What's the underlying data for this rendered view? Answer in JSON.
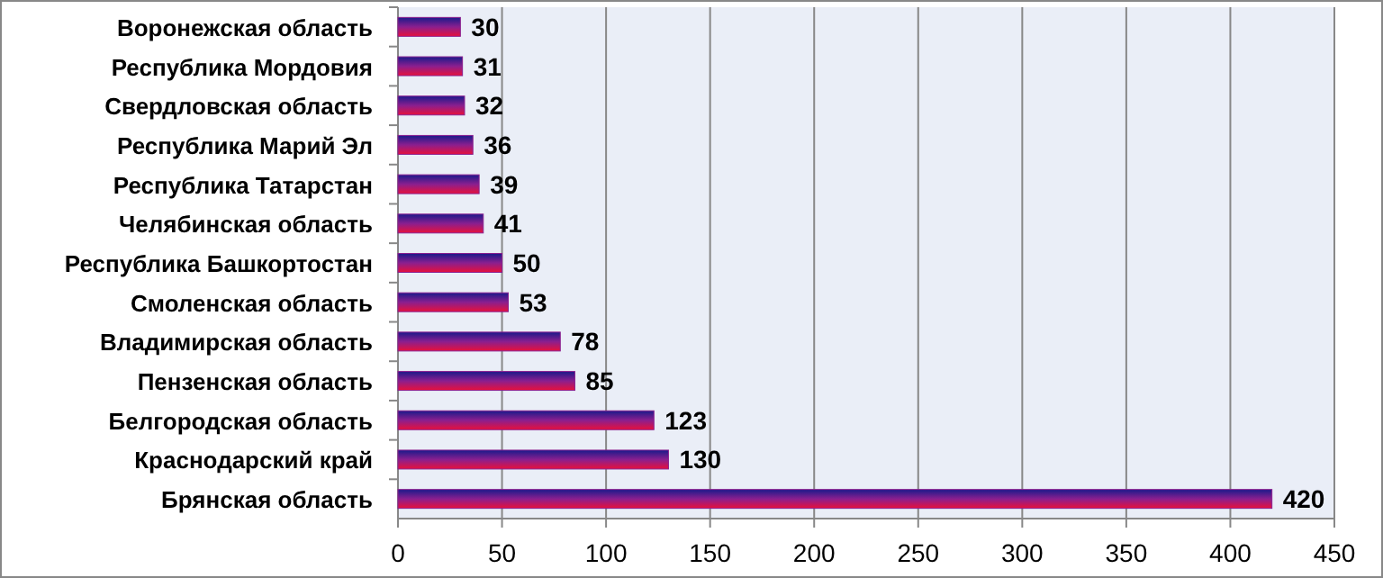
{
  "chart_data": {
    "type": "bar",
    "orientation": "horizontal",
    "categories": [
      "Воронежская область",
      "Республика Мордовия",
      "Свердловская область",
      "Республика Марий Эл",
      "Республика Татарстан",
      "Челябинская область",
      "Республика Башкортостан",
      "Смоленская область",
      "Владимирская область",
      "Пензенская область",
      "Белгородская область",
      "Краснодарский край",
      "Брянская область"
    ],
    "values": [
      30,
      31,
      32,
      36,
      39,
      41,
      50,
      53,
      78,
      85,
      123,
      130,
      420
    ],
    "color": "#8a1f8f",
    "data_labels": true,
    "grid": "x",
    "xlim": [
      0,
      450
    ],
    "xticks": [
      0,
      50,
      100,
      150,
      200,
      250,
      300,
      350,
      400,
      450
    ]
  }
}
